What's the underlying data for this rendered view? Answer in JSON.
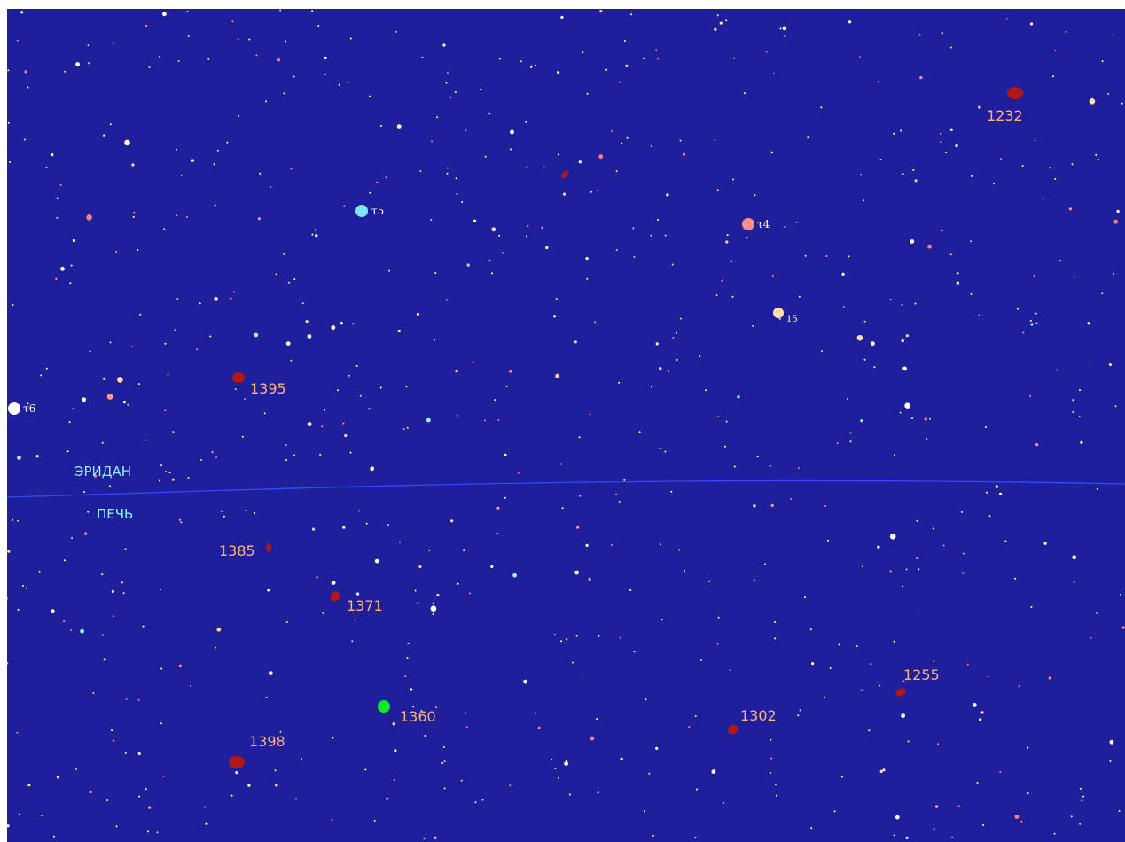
{
  "colors": {
    "background": "#1f1f9b",
    "boundary_line": "#2f4cff",
    "galaxy": "#b01818",
    "galaxy_label": "#ffb27a",
    "selected_galaxy": "#00ee22",
    "constellation_label": "#8ff4ff",
    "star_label": "#ffffff"
  },
  "constellations": {
    "upper": "ЭРИДАН",
    "lower": "ПЕЧЬ"
  },
  "named_stars": [
    {
      "id": "tau5",
      "label": "τ5",
      "color": "#7fe6ff"
    },
    {
      "id": "tau4",
      "label": "τ4",
      "color": "#ff8f86"
    },
    {
      "id": "s15",
      "label": "15",
      "color": "#ffe0a8"
    },
    {
      "id": "tau6",
      "label": "τ6",
      "color": "#ffffff"
    }
  ],
  "galaxies": [
    {
      "id": "1232",
      "label": "1232"
    },
    {
      "id": "1395",
      "label": "1395"
    },
    {
      "id": "1385",
      "label": "1385"
    },
    {
      "id": "1371",
      "label": "1371"
    },
    {
      "id": "1360",
      "label": "1360",
      "selected": true
    },
    {
      "id": "1398",
      "label": "1398"
    },
    {
      "id": "1302",
      "label": "1302"
    },
    {
      "id": "1255",
      "label": "1255"
    }
  ]
}
